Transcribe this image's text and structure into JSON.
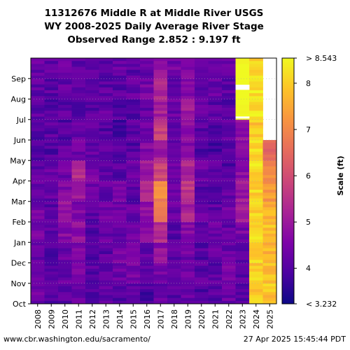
{
  "title_lines": [
    "11312676 Middle R at Middle River USGS",
    "WY 2008-2025 Daily Average River Stage",
    "Observed Range 2.852 : 9.197 ft"
  ],
  "footer": {
    "source": "www.cbr.washington.edu/sacramento/",
    "timestamp": "27 Apr 2025 15:45:44 PDT"
  },
  "chart_data": {
    "type": "heatmap",
    "colormap": "plasma",
    "x": [
      "2008",
      "2009",
      "2010",
      "2011",
      "2012",
      "2013",
      "2014",
      "2015",
      "2016",
      "2017",
      "2018",
      "2019",
      "2020",
      "2021",
      "2022",
      "2023",
      "2024",
      "2025"
    ],
    "y": [
      "Oct",
      "Nov",
      "Dec",
      "Jan",
      "Feb",
      "Mar",
      "Apr",
      "May",
      "Jun",
      "Jul",
      "Aug",
      "Sep"
    ],
    "y_order": "bottom-to-top",
    "colorbar": {
      "label": "Scale (ft)",
      "min": 3.232,
      "max": 8.543,
      "min_label": "< 3.232",
      "max_label": "> 8.543",
      "ticks": [
        4,
        5,
        6,
        7,
        8
      ]
    },
    "no_data": "white",
    "approx_monthly_mean_ft": [
      [
        4.3,
        4.0,
        4.1,
        4.2,
        4.0,
        4.1,
        4.0,
        4.2,
        3.9,
        4.3,
        4.1,
        4.2,
        4.0,
        4.0,
        4.3,
        4.0,
        8.0,
        7.9
      ],
      [
        4.2,
        4.1,
        4.2,
        4.5,
        4.1,
        4.2,
        4.3,
        4.4,
        4.1,
        4.5,
        4.2,
        4.3,
        4.1,
        4.1,
        4.4,
        4.1,
        8.0,
        7.8
      ],
      [
        4.2,
        4.0,
        4.3,
        4.6,
        4.0,
        4.1,
        4.4,
        4.5,
        4.2,
        4.8,
        4.1,
        4.4,
        4.0,
        4.2,
        4.3,
        4.2,
        8.1,
        7.7
      ],
      [
        4.5,
        4.2,
        4.7,
        4.8,
        4.0,
        4.3,
        4.2,
        4.3,
        4.6,
        5.4,
        4.1,
        4.6,
        4.1,
        4.3,
        4.2,
        4.5,
        8.2,
        7.9
      ],
      [
        4.4,
        4.1,
        4.9,
        4.6,
        4.1,
        4.4,
        4.3,
        4.2,
        4.8,
        6.8,
        4.3,
        5.2,
        4.2,
        4.1,
        4.3,
        5.0,
        8.0,
        7.6
      ],
      [
        4.3,
        4.2,
        4.6,
        5.0,
        4.3,
        4.2,
        4.5,
        4.1,
        5.2,
        7.0,
        4.5,
        5.6,
        4.1,
        4.0,
        4.2,
        5.0,
        8.1,
        7.3
      ],
      [
        4.2,
        4.3,
        4.4,
        5.5,
        4.5,
        4.2,
        4.1,
        4.3,
        5.0,
        5.8,
        4.4,
        5.3,
        4.3,
        4.1,
        4.0,
        4.8,
        8.2,
        7.1
      ],
      [
        4.1,
        4.0,
        4.1,
        4.4,
        4.2,
        4.1,
        4.0,
        4.0,
        4.6,
        5.1,
        4.2,
        4.7,
        4.0,
        3.9,
        4.0,
        4.7,
        8.1,
        6.4
      ],
      [
        4.0,
        4.1,
        4.0,
        4.2,
        4.3,
        4.0,
        3.9,
        4.1,
        4.4,
        5.7,
        4.1,
        4.8,
        4.1,
        4.0,
        4.1,
        4.8,
        7.9,
        null
      ],
      [
        4.1,
        4.0,
        4.1,
        4.1,
        4.1,
        4.2,
        4.0,
        4.0,
        4.2,
        5.2,
        4.3,
        5.0,
        4.3,
        4.1,
        4.0,
        8.8,
        8.3,
        null
      ],
      [
        4.2,
        4.1,
        4.2,
        4.3,
        4.2,
        4.1,
        4.1,
        4.2,
        4.4,
        5.2,
        4.2,
        4.7,
        4.2,
        4.2,
        4.1,
        8.9,
        8.2,
        null
      ],
      [
        4.3,
        4.2,
        4.3,
        4.2,
        4.1,
        4.0,
        4.2,
        4.1,
        4.3,
        4.9,
        4.4,
        4.5,
        4.2,
        4.3,
        4.2,
        8.8,
        8.1,
        null
      ]
    ],
    "gaps": [
      {
        "x": "2023",
        "y": "Aug",
        "fraction_of_month": [
          0.3,
          0.55
        ]
      },
      {
        "x": "2023",
        "y": "Jul",
        "fraction_of_month": [
          0.85,
          0.95
        ]
      }
    ]
  }
}
